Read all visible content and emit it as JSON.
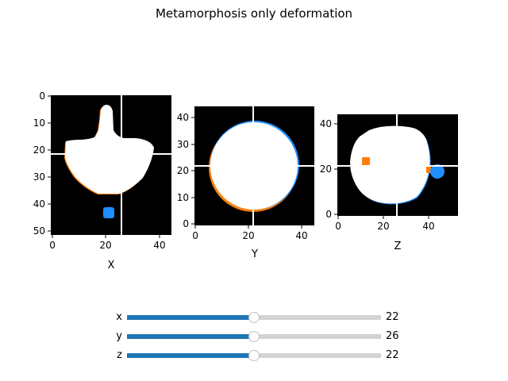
{
  "title": "Metamorphosis only deformation",
  "colors": {
    "background": "#000000",
    "shape": "#ffffff",
    "edge_orange": "#ff7f0e",
    "edge_blue": "#1f8fff",
    "crosshair": "#ffffff",
    "slider_fill": "#1f77b4",
    "slider_track": "#d3d3d3"
  },
  "panels": [
    {
      "id": "x",
      "xlabel": "X",
      "xticks": [
        "0",
        "20",
        "40"
      ],
      "yticks": [
        "0",
        "10",
        "20",
        "30",
        "40",
        "50"
      ],
      "xlim": [
        0,
        45
      ],
      "ylim": [
        52,
        0
      ],
      "y_inverted": true,
      "crosshair": {
        "x": 26,
        "y": 22
      }
    },
    {
      "id": "y",
      "xlabel": "Y",
      "xticks": [
        "0",
        "20",
        "40"
      ],
      "yticks": [
        "0",
        "10",
        "20",
        "30",
        "40"
      ],
      "xlim": [
        0,
        45
      ],
      "ylim": [
        0,
        45
      ],
      "y_inverted": false,
      "crosshair": {
        "x": 22,
        "y": 22
      }
    },
    {
      "id": "z",
      "xlabel": "Z",
      "xticks": [
        "0",
        "20",
        "40"
      ],
      "yticks": [
        "0",
        "20",
        "40"
      ],
      "xlim": [
        0,
        53
      ],
      "ylim": [
        0,
        45
      ],
      "y_inverted": false,
      "crosshair": {
        "x": 26,
        "y": 22
      }
    }
  ],
  "sliders": [
    {
      "label": "x",
      "value": "22",
      "fraction": 0.5
    },
    {
      "label": "y",
      "value": "26",
      "fraction": 0.5
    },
    {
      "label": "z",
      "value": "22",
      "fraction": 0.5
    }
  ]
}
